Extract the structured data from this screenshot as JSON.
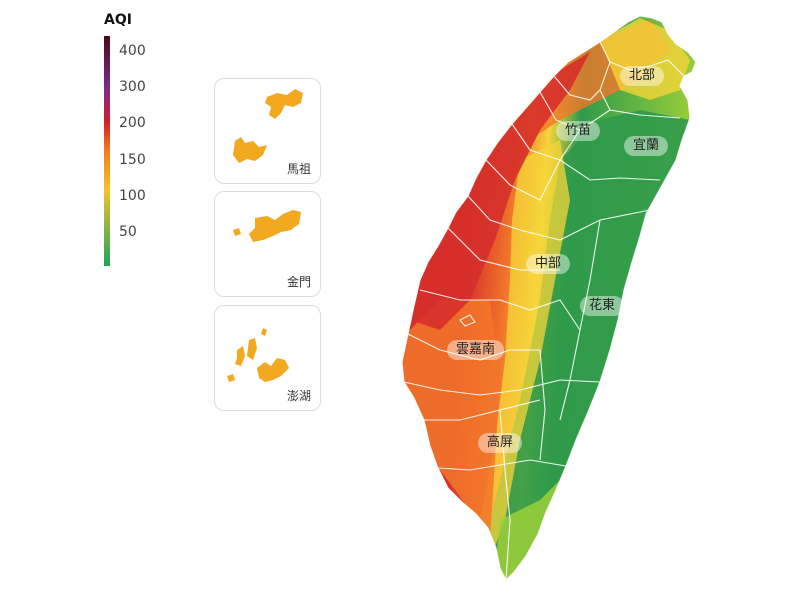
{
  "legend": {
    "title": "AQI",
    "ticks": [
      "400",
      "300",
      "200",
      "150",
      "100",
      "50"
    ],
    "colors": [
      "#1fa35a",
      "#f2c32a",
      "#f57c1f",
      "#d11f2b",
      "#7a2b8f",
      "#4a0a10"
    ]
  },
  "insets": [
    {
      "name": "馬祖",
      "fill": "#f2a91f"
    },
    {
      "name": "金門",
      "fill": "#f2a91f"
    },
    {
      "name": "澎湖",
      "fill": "#f2a91f"
    }
  ],
  "regions": [
    "北部",
    "竹苗",
    "宜蘭",
    "中部",
    "花東",
    "雲嘉南",
    "高屏"
  ],
  "map_colors": {
    "red": "#d6302a",
    "orange": "#f2772a",
    "yellow": "#f5d53a",
    "green": "#2f9a4a",
    "lightgreen": "#9ccf3a",
    "border": "#ffffff"
  }
}
